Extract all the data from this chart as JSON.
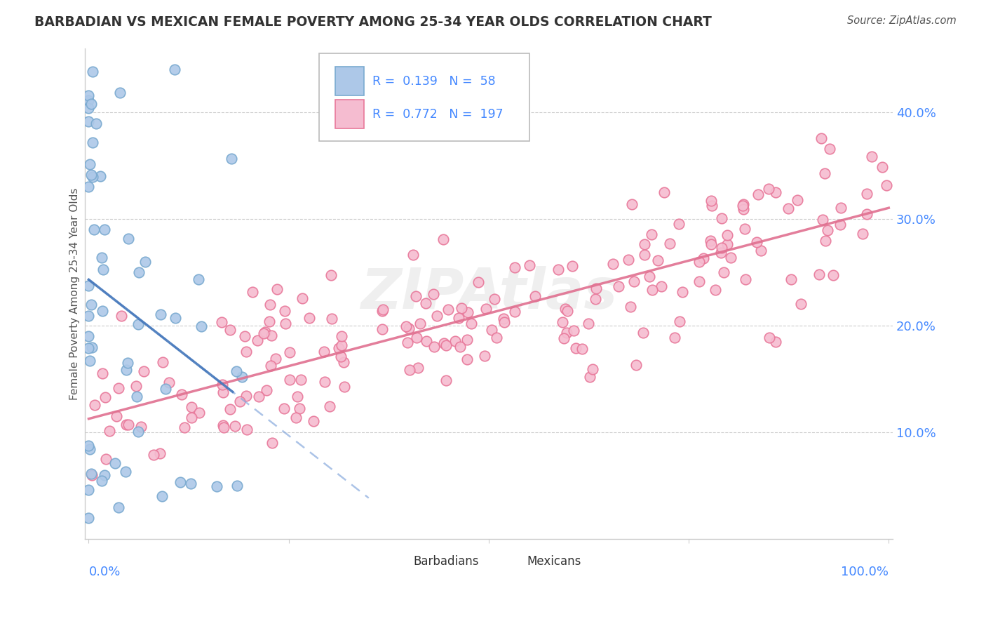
{
  "title": "BARBADIAN VS MEXICAN FEMALE POVERTY AMONG 25-34 YEAR OLDS CORRELATION CHART",
  "source": "Source: ZipAtlas.com",
  "ylabel": "Female Poverty Among 25-34 Year Olds",
  "watermark": "ZIPAtlas",
  "barbadian_R": 0.139,
  "barbadian_N": 58,
  "mexican_R": 0.772,
  "mexican_N": 197,
  "barbadian_color": "#adc8e8",
  "mexican_color": "#f5bcd0",
  "barbadian_edge_color": "#7aaad0",
  "mexican_edge_color": "#e8789a",
  "barbadian_line_color": "#88aadd",
  "mexican_line_color": "#e07090",
  "title_color": "#333333",
  "source_color": "#555555",
  "axis_label_color": "#555555",
  "tick_color": "#4488ff",
  "legend_border_color": "#bbbbbb",
  "grid_color": "#cccccc",
  "spine_color": "#cccccc"
}
